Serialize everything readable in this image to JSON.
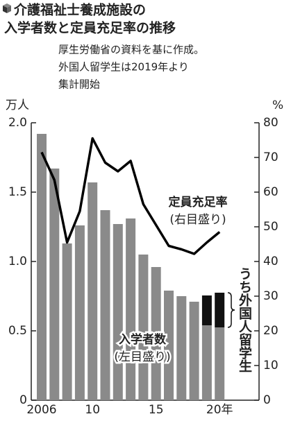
{
  "chart_data": {
    "type": "combo",
    "title": [
      "介護福祉士養成施設の",
      "入学者数と定員充足率の推移"
    ],
    "notes": [
      "厚生労働省の資料を基に作成。",
      "外国人留学生は2019年より",
      "集計開始"
    ],
    "y_unit": "万人",
    "y2_unit": "%",
    "categories": [
      "2006",
      null,
      null,
      null,
      "10",
      null,
      null,
      null,
      null,
      "15",
      null,
      null,
      null,
      null,
      "20年"
    ],
    "series": [
      {
        "name": "入学者数",
        "type": "bar",
        "color": "#8a8a8a",
        "annotation": "(左目盛り)",
        "values": [
          1.92,
          1.67,
          1.13,
          1.26,
          1.57,
          1.37,
          1.27,
          1.31,
          1.05,
          0.96,
          0.79,
          0.75,
          0.71,
          0.54,
          0.525
        ]
      },
      {
        "name": "うち外国人留学生",
        "type": "bar",
        "color": "#111111",
        "values": [
          null,
          null,
          null,
          null,
          null,
          null,
          null,
          null,
          null,
          null,
          null,
          null,
          null,
          0.215,
          0.25
        ]
      },
      {
        "name": "定員充足率",
        "type": "line",
        "axis": "y2",
        "color": "#000000",
        "annotation": "(右目盛り)",
        "values": [
          71.5,
          63.5,
          45.5,
          54.5,
          75.5,
          68.5,
          66,
          69,
          56.5,
          50.5,
          44.5,
          43.5,
          42.2,
          45.5,
          48.5
        ]
      }
    ],
    "ylim": [
      0,
      2.0
    ],
    "yticks": [
      0,
      0.5,
      {
        "value": 1.0,
        "label": "1.0"
      },
      1.5,
      {
        "value": 2.0,
        "label": "2.0"
      }
    ],
    "y2lim": [
      0,
      80
    ],
    "y2ticks": [
      0,
      10,
      20,
      30,
      40,
      50,
      60,
      70,
      80
    ]
  }
}
